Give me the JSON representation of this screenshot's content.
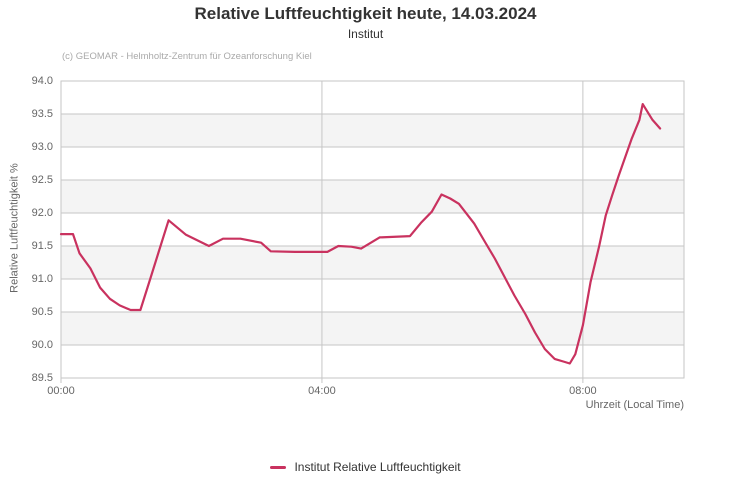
{
  "header": {
    "title": "Relative Luftfeuchtigkeit heute, 14.03.2024",
    "subtitle": "Institut",
    "credit": "(c) GEOMAR - Helmholtz-Zentrum für Ozeanforschung Kiel"
  },
  "legend": {
    "label": "Institut Relative Luftfeuchtigkeit",
    "marker_color": "#c9325f",
    "position": "bottom-center"
  },
  "colors": {
    "line": "#c9325f",
    "grid": "#c6c6c6",
    "border": "#c6c6c6",
    "band": "#f4f4f4",
    "background": "#ffffff",
    "title_text": "#333333",
    "axis_text": "#666666",
    "credit_text": "#aaaaaa"
  },
  "chart_data": {
    "type": "line",
    "title": "Relative Luftfeuchtigkeit heute, 14.03.2024",
    "subtitle": "Institut",
    "xlabel": "Uhrzeit (Local Time)",
    "ylabel": "Relative Luftfeuchtigkeit %",
    "x_unit": "minutes since 00:00 local time",
    "xlim": [
      0,
      573
    ],
    "ylim": [
      89.5,
      94.0
    ],
    "grid": "horizontal lines at 0.5 steps, vertical lines at 4h steps, alternating horizontal bands",
    "legend_position": "bottom-center",
    "xticks": [
      {
        "value": 0,
        "label": "00:00"
      },
      {
        "value": 240,
        "label": "04:00"
      },
      {
        "value": 480,
        "label": "08:00"
      }
    ],
    "yticks": [
      {
        "value": 89.5,
        "label": "89.5"
      },
      {
        "value": 90.0,
        "label": "90.0"
      },
      {
        "value": 90.5,
        "label": "90.5"
      },
      {
        "value": 91.0,
        "label": "91.0"
      },
      {
        "value": 91.5,
        "label": "91.5"
      },
      {
        "value": 92.0,
        "label": "92.0"
      },
      {
        "value": 92.5,
        "label": "92.5"
      },
      {
        "value": 93.0,
        "label": "93.0"
      },
      {
        "value": 93.5,
        "label": "93.5"
      },
      {
        "value": 94.0,
        "label": "94.0"
      }
    ],
    "series": [
      {
        "name": "Institut Relative Luftfeuchtigkeit",
        "color": "#c9325f",
        "points": [
          [
            0,
            91.68
          ],
          [
            11,
            91.68
          ],
          [
            17,
            91.39
          ],
          [
            27,
            91.16
          ],
          [
            36,
            90.87
          ],
          [
            45,
            90.7
          ],
          [
            54,
            90.6
          ],
          [
            64,
            90.53
          ],
          [
            73,
            90.53
          ],
          [
            82,
            91.0
          ],
          [
            91,
            91.47
          ],
          [
            99,
            91.89
          ],
          [
            115,
            91.67
          ],
          [
            136,
            91.5
          ],
          [
            149,
            91.61
          ],
          [
            165,
            91.61
          ],
          [
            184,
            91.55
          ],
          [
            193,
            91.42
          ],
          [
            215,
            91.41
          ],
          [
            245,
            91.41
          ],
          [
            255,
            91.5
          ],
          [
            267,
            91.49
          ],
          [
            276,
            91.46
          ],
          [
            285,
            91.55
          ],
          [
            293,
            91.63
          ],
          [
            321,
            91.65
          ],
          [
            331,
            91.85
          ],
          [
            341,
            92.02
          ],
          [
            350,
            92.28
          ],
          [
            358,
            92.22
          ],
          [
            366,
            92.14
          ],
          [
            380,
            91.84
          ],
          [
            390,
            91.56
          ],
          [
            399,
            91.31
          ],
          [
            408,
            91.03
          ],
          [
            417,
            90.75
          ],
          [
            427,
            90.47
          ],
          [
            436,
            90.19
          ],
          [
            445,
            89.94
          ],
          [
            454,
            89.79
          ],
          [
            462,
            89.75
          ],
          [
            468,
            89.72
          ],
          [
            473,
            89.86
          ],
          [
            480,
            90.3
          ],
          [
            487,
            90.95
          ],
          [
            495,
            91.5
          ],
          [
            501,
            91.96
          ],
          [
            507,
            92.27
          ],
          [
            513,
            92.57
          ],
          [
            519,
            92.85
          ],
          [
            525,
            93.13
          ],
          [
            532,
            93.41
          ],
          [
            535,
            93.65
          ],
          [
            544,
            93.41
          ],
          [
            551,
            93.28
          ]
        ]
      }
    ]
  }
}
